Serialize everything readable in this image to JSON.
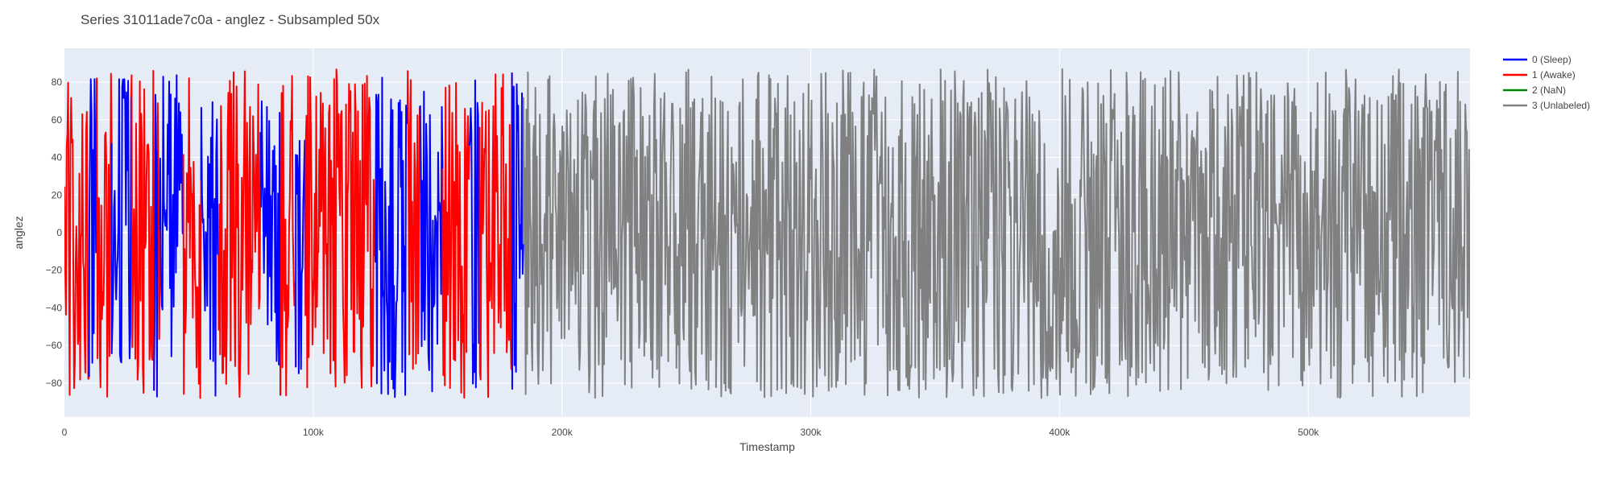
{
  "chart_data": {
    "type": "line",
    "title": "Series 31011ade7c0a - anglez - Subsampled 50x",
    "xlabel": "Timestamp",
    "ylabel": "anglez",
    "xlim": [
      0,
      565000
    ],
    "ylim": [
      -98,
      98
    ],
    "x_ticks": [
      {
        "value": 0,
        "label": "0"
      },
      {
        "value": 100000,
        "label": "100k"
      },
      {
        "value": 200000,
        "label": "200k"
      },
      {
        "value": 300000,
        "label": "300k"
      },
      {
        "value": 400000,
        "label": "400k"
      },
      {
        "value": 500000,
        "label": "500k"
      }
    ],
    "y_ticks": [
      {
        "value": 80,
        "label": "80"
      },
      {
        "value": 60,
        "label": "60"
      },
      {
        "value": 40,
        "label": "40"
      },
      {
        "value": 20,
        "label": "20"
      },
      {
        "value": 0,
        "label": "0"
      },
      {
        "value": -20,
        "label": "−20"
      },
      {
        "value": -40,
        "label": "−40"
      },
      {
        "value": -60,
        "label": "−60"
      },
      {
        "value": -80,
        "label": "−80"
      }
    ],
    "grid": true,
    "legend_position": "top-right",
    "plot_background": "#e5ecf6",
    "series": [
      {
        "name": "0 (Sleep)",
        "color": "#0000ff",
        "segments": [
          [
            10000,
            13000
          ],
          [
            19000,
            27000
          ],
          [
            36000,
            37500
          ],
          [
            38500,
            48000
          ],
          [
            55000,
            62000
          ],
          [
            79000,
            87000
          ],
          [
            93000,
            97000
          ],
          [
            125000,
            138000
          ],
          [
            143000,
            152000
          ],
          [
            163000,
            167000
          ],
          [
            180000,
            184500
          ]
        ]
      },
      {
        "name": "1 (Awake)",
        "color": "#ff0000",
        "segments": [
          [
            0,
            10000
          ],
          [
            13000,
            19000
          ],
          [
            27000,
            36000
          ],
          [
            37500,
            38500
          ],
          [
            48000,
            55000
          ],
          [
            62000,
            79000
          ],
          [
            87000,
            93000
          ],
          [
            97000,
            125000
          ],
          [
            138000,
            143000
          ],
          [
            152000,
            163000
          ],
          [
            167000,
            180000
          ]
        ]
      },
      {
        "name": "2 (NaN)",
        "color": "#008000",
        "segments": []
      },
      {
        "name": "3 (Unlabeled)",
        "color": "#808080",
        "segments": [
          [
            184500,
            565000
          ]
        ]
      }
    ],
    "value_range": [
      -88,
      87
    ],
    "sample_step": 300
  }
}
